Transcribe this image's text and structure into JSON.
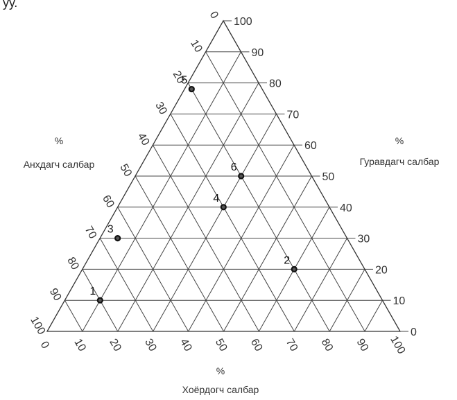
{
  "header_fragment": "ўў.",
  "diagram": {
    "type": "ternary",
    "axes": {
      "primary": {
        "percent": "%",
        "label": "Анхдагч салбар"
      },
      "tertiary": {
        "percent": "%",
        "label": "Гуравдагч салбар"
      },
      "secondary": {
        "percent": "%",
        "label": "Хоёрдогч салбар"
      }
    },
    "left_ticks": [
      "0",
      "10",
      "20",
      "30",
      "40",
      "50",
      "60",
      "70",
      "80",
      "90",
      "100"
    ],
    "right_ticks": [
      "100",
      "90",
      "80",
      "70",
      "60",
      "50",
      "40",
      "30",
      "20",
      "10",
      "0"
    ],
    "bottom_ticks": [
      "0",
      "10",
      "20",
      "30",
      "40",
      "50",
      "60",
      "70",
      "80",
      "90",
      "100"
    ],
    "points": [
      {
        "label": "1",
        "tertiary": 10,
        "secondary": 10,
        "primary": 80
      },
      {
        "label": "2",
        "tertiary": 20,
        "secondary": 60,
        "primary": 20
      },
      {
        "label": "3",
        "tertiary": 30,
        "secondary": 5,
        "primary": 65
      },
      {
        "label": "4",
        "tertiary": 40,
        "secondary": 30,
        "primary": 30
      },
      {
        "label": "5",
        "tertiary": 78,
        "secondary": 2,
        "primary": 20
      },
      {
        "label": "6",
        "tertiary": 50,
        "secondary": 30,
        "primary": 20
      }
    ]
  }
}
